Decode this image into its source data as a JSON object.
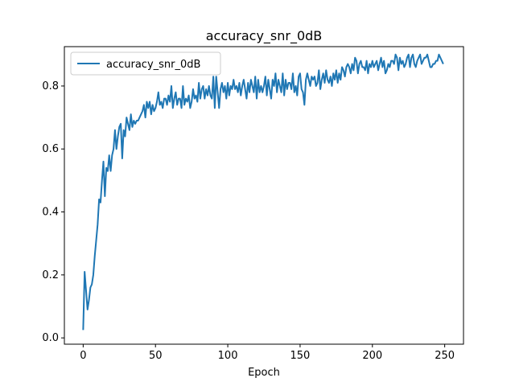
{
  "chart_data": {
    "type": "line",
    "title": "accuracy_snr_0dB",
    "xlabel": "Epoch",
    "ylabel": "",
    "xlim": [
      -13,
      263
    ],
    "ylim": [
      -0.02,
      0.925
    ],
    "xticks": [
      0,
      50,
      100,
      150,
      200,
      250
    ],
    "yticks": [
      0.0,
      0.2,
      0.4,
      0.6,
      0.8
    ],
    "xtick_labels": [
      "0",
      "50",
      "100",
      "150",
      "200",
      "250"
    ],
    "ytick_labels": [
      "0.0",
      "0.2",
      "0.4",
      "0.6",
      "0.8"
    ],
    "grid": false,
    "legend_position": "upper-left",
    "colors": {
      "series": "#1f77b4",
      "axes": "#000000",
      "background": "#ffffff",
      "legend_border": "#cccccc"
    },
    "series": [
      {
        "name": "accuracy_snr_0dB",
        "x": [
          0,
          1,
          2,
          3,
          4,
          5,
          6,
          7,
          8,
          9,
          10,
          11,
          12,
          13,
          14,
          15,
          16,
          17,
          18,
          19,
          20,
          21,
          22,
          23,
          24,
          25,
          26,
          27,
          28,
          29,
          30,
          31,
          32,
          33,
          34,
          35,
          36,
          37,
          38,
          39,
          40,
          41,
          42,
          43,
          44,
          45,
          46,
          47,
          48,
          49,
          50,
          51,
          52,
          53,
          54,
          55,
          56,
          57,
          58,
          59,
          60,
          61,
          62,
          63,
          64,
          65,
          66,
          67,
          68,
          69,
          70,
          71,
          72,
          73,
          74,
          75,
          76,
          77,
          78,
          79,
          80,
          81,
          82,
          83,
          84,
          85,
          86,
          87,
          88,
          89,
          90,
          91,
          92,
          93,
          94,
          95,
          96,
          97,
          98,
          99,
          100,
          101,
          102,
          103,
          104,
          105,
          106,
          107,
          108,
          109,
          110,
          111,
          112,
          113,
          114,
          115,
          116,
          117,
          118,
          119,
          120,
          121,
          122,
          123,
          124,
          125,
          126,
          127,
          128,
          129,
          130,
          131,
          132,
          133,
          134,
          135,
          136,
          137,
          138,
          139,
          140,
          141,
          142,
          143,
          144,
          145,
          146,
          147,
          148,
          149,
          150,
          151,
          152,
          153,
          154,
          155,
          156,
          157,
          158,
          159,
          160,
          161,
          162,
          163,
          164,
          165,
          166,
          167,
          168,
          169,
          170,
          171,
          172,
          173,
          174,
          175,
          176,
          177,
          178,
          179,
          180,
          181,
          182,
          183,
          184,
          185,
          186,
          187,
          188,
          189,
          190,
          191,
          192,
          193,
          194,
          195,
          196,
          197,
          198,
          199,
          200,
          201,
          202,
          203,
          204,
          205,
          206,
          207,
          208,
          209,
          210,
          211,
          212,
          213,
          214,
          215,
          216,
          217,
          218,
          219,
          220,
          221,
          222,
          223,
          224,
          225,
          226,
          227,
          228,
          229,
          230,
          231,
          232,
          233,
          234,
          235,
          236,
          237,
          238,
          239,
          240,
          241,
          242,
          243,
          244,
          245,
          246,
          247,
          248,
          249
        ],
        "y": [
          0.025,
          0.21,
          0.15,
          0.09,
          0.12,
          0.16,
          0.17,
          0.2,
          0.26,
          0.31,
          0.36,
          0.44,
          0.43,
          0.5,
          0.56,
          0.45,
          0.54,
          0.53,
          0.58,
          0.53,
          0.58,
          0.6,
          0.66,
          0.6,
          0.64,
          0.67,
          0.68,
          0.57,
          0.66,
          0.64,
          0.7,
          0.68,
          0.66,
          0.71,
          0.67,
          0.69,
          0.68,
          0.69,
          0.69,
          0.7,
          0.71,
          0.72,
          0.74,
          0.7,
          0.75,
          0.73,
          0.75,
          0.71,
          0.74,
          0.72,
          0.73,
          0.75,
          0.78,
          0.74,
          0.75,
          0.73,
          0.76,
          0.76,
          0.74,
          0.77,
          0.75,
          0.8,
          0.73,
          0.76,
          0.78,
          0.74,
          0.76,
          0.76,
          0.73,
          0.8,
          0.74,
          0.76,
          0.75,
          0.77,
          0.73,
          0.75,
          0.79,
          0.76,
          0.77,
          0.75,
          0.81,
          0.76,
          0.79,
          0.8,
          0.76,
          0.79,
          0.77,
          0.8,
          0.77,
          0.76,
          0.83,
          0.73,
          0.83,
          0.78,
          0.73,
          0.79,
          0.81,
          0.78,
          0.8,
          0.76,
          0.81,
          0.77,
          0.8,
          0.79,
          0.82,
          0.79,
          0.8,
          0.78,
          0.81,
          0.77,
          0.8,
          0.82,
          0.79,
          0.76,
          0.81,
          0.78,
          0.82,
          0.8,
          0.78,
          0.83,
          0.76,
          0.82,
          0.78,
          0.8,
          0.78,
          0.8,
          0.83,
          0.77,
          0.82,
          0.79,
          0.76,
          0.82,
          0.8,
          0.84,
          0.78,
          0.82,
          0.8,
          0.78,
          0.84,
          0.77,
          0.82,
          0.79,
          0.81,
          0.81,
          0.79,
          0.84,
          0.78,
          0.8,
          0.77,
          0.83,
          0.84,
          0.79,
          0.78,
          0.74,
          0.82,
          0.84,
          0.82,
          0.8,
          0.83,
          0.82,
          0.83,
          0.8,
          0.81,
          0.85,
          0.79,
          0.82,
          0.84,
          0.81,
          0.85,
          0.82,
          0.81,
          0.83,
          0.8,
          0.84,
          0.82,
          0.85,
          0.81,
          0.84,
          0.82,
          0.86,
          0.85,
          0.83,
          0.86,
          0.87,
          0.86,
          0.84,
          0.87,
          0.85,
          0.89,
          0.88,
          0.84,
          0.87,
          0.88,
          0.86,
          0.86,
          0.85,
          0.88,
          0.84,
          0.87,
          0.86,
          0.88,
          0.86,
          0.87,
          0.88,
          0.85,
          0.87,
          0.89,
          0.86,
          0.88,
          0.84,
          0.85,
          0.87,
          0.86,
          0.88,
          0.88,
          0.87,
          0.9,
          0.89,
          0.85,
          0.89,
          0.87,
          0.88,
          0.86,
          0.87,
          0.89,
          0.9,
          0.86,
          0.89,
          0.9,
          0.87,
          0.86,
          0.88,
          0.89,
          0.9,
          0.87,
          0.88,
          0.89,
          0.89,
          0.9,
          0.88,
          0.86,
          0.86,
          0.87,
          0.87,
          0.88,
          0.88,
          0.9,
          0.89,
          0.88,
          0.87
        ]
      }
    ]
  }
}
